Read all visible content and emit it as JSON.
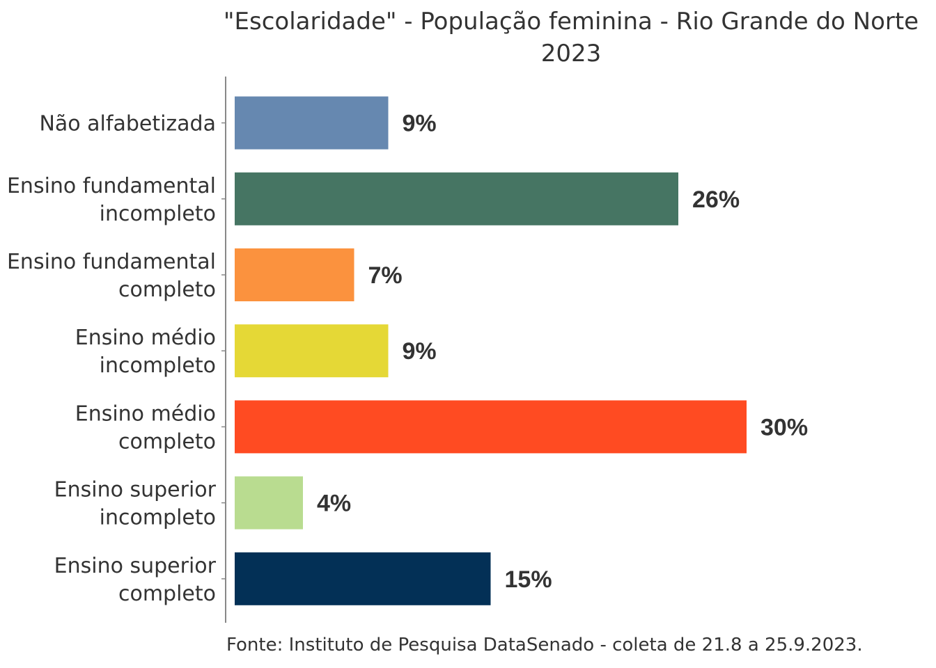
{
  "chart_data": {
    "type": "bar",
    "orientation": "horizontal",
    "title": "\"Escolaridade\" - População feminina - Rio Grande do Norte",
    "subtitle": "2023",
    "categories": [
      [
        "Não alfabetizada"
      ],
      [
        "Ensino fundamental",
        "incompleto"
      ],
      [
        "Ensino fundamental",
        "completo"
      ],
      [
        "Ensino médio",
        "incompleto"
      ],
      [
        "Ensino médio",
        "completo"
      ],
      [
        "Ensino superior",
        "incompleto"
      ],
      [
        "Ensino superior",
        "completo"
      ]
    ],
    "values": [
      9,
      26,
      7,
      9,
      30,
      4,
      15
    ],
    "labels": [
      "9%",
      "26%",
      "7%",
      "9%",
      "30%",
      "4%",
      "15%"
    ],
    "colors": [
      "#6688b0",
      "#467563",
      "#fb923e",
      "#e5d836",
      "#ff4b22",
      "#b9dc90",
      "#033056"
    ],
    "xlabel": "",
    "ylabel": "",
    "xlim": [
      0,
      32
    ],
    "grid": false,
    "source": "Fonte: Instituto de Pesquisa DataSenado - coleta de 21.8 a 25.9.2023."
  }
}
